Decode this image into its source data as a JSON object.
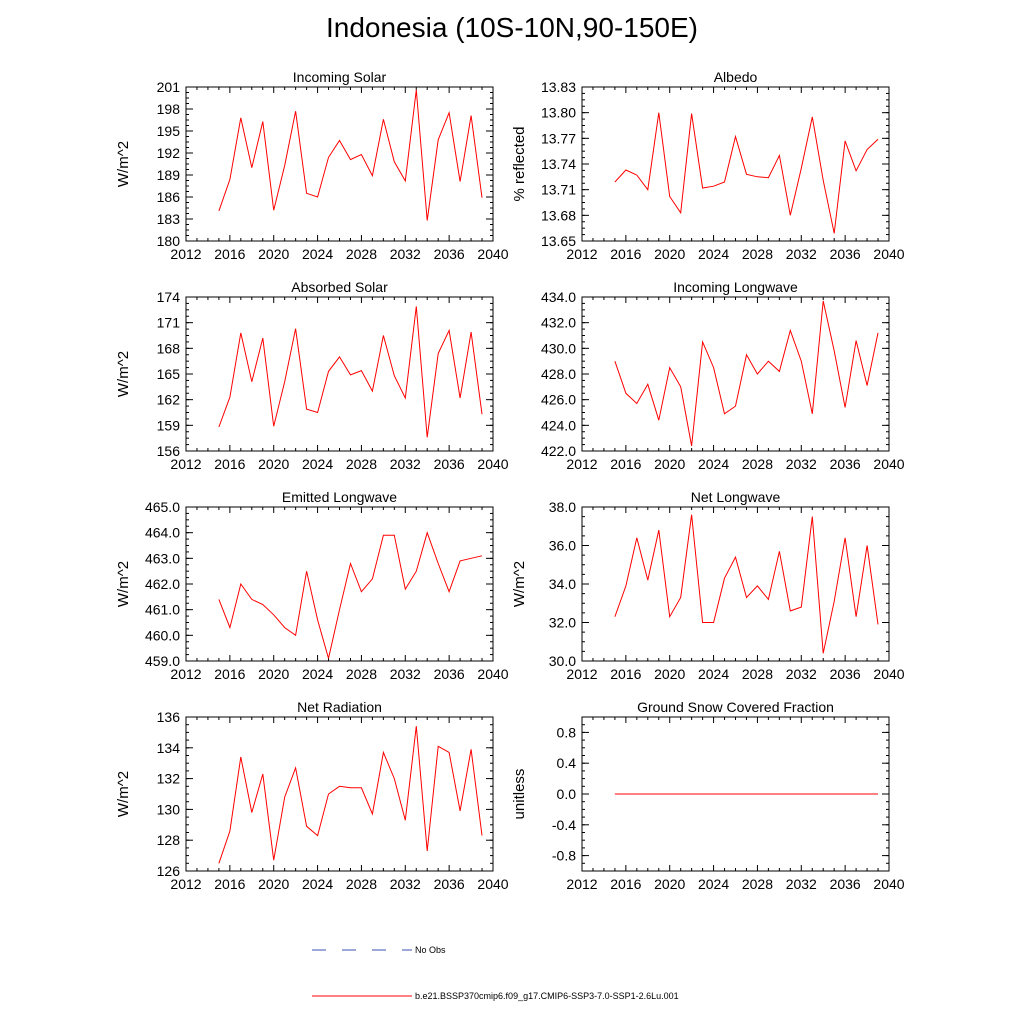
{
  "title": "Indonesia (10S-10N,90-150E)",
  "colors": {
    "model": "#ff0000",
    "obs": "#3b4fb5",
    "axis": "#000000"
  },
  "legend": {
    "obs_label": "No Obs",
    "model_label": "b.e21.BSSP370cmip6.f09_g17.CMIP6-SSP3-7.0-SSP1-2.6Lu.001"
  },
  "chart_data": [
    {
      "type": "line",
      "title": "Incoming Solar",
      "ylabel": "W/m^2",
      "xlim": [
        2012,
        2040
      ],
      "ylim": [
        180,
        201
      ],
      "xticks": [
        "2012",
        "2016",
        "2020",
        "2024",
        "2028",
        "2032",
        "2036",
        "2040"
      ],
      "yticks": [
        "180",
        "183",
        "186",
        "189",
        "192",
        "195",
        "198",
        "201"
      ],
      "series": [
        {
          "x": [
            2015,
            2016,
            2017,
            2018,
            2019,
            2020,
            2021,
            2022,
            2023,
            2024,
            2025,
            2026,
            2027,
            2028,
            2029,
            2030,
            2031,
            2032,
            2033,
            2034,
            2035,
            2036,
            2037,
            2038,
            2039
          ],
          "values": [
            184.1,
            188.4,
            196.8,
            190.0,
            196.3,
            184.2,
            190.3,
            197.7,
            186.5,
            186.0,
            191.4,
            193.7,
            191.1,
            191.8,
            188.9,
            196.6,
            190.8,
            188.2,
            200.6,
            182.8,
            193.8,
            197.5,
            188.1,
            197.1,
            185.9
          ]
        }
      ]
    },
    {
      "type": "line",
      "title": "Albedo",
      "ylabel": "% reflected",
      "xlim": [
        2012,
        2040
      ],
      "ylim": [
        13.65,
        13.83
      ],
      "xticks": [
        "2012",
        "2016",
        "2020",
        "2024",
        "2028",
        "2032",
        "2036",
        "2040"
      ],
      "yticks": [
        "13.65",
        "13.68",
        "13.71",
        "13.74",
        "13.77",
        "13.80",
        "13.83"
      ],
      "series": [
        {
          "x": [
            2015,
            2016,
            2017,
            2018,
            2019,
            2020,
            2021,
            2022,
            2023,
            2024,
            2025,
            2026,
            2027,
            2028,
            2029,
            2030,
            2031,
            2032,
            2033,
            2034,
            2035,
            2036,
            2037,
            2038,
            2039
          ],
          "values": [
            13.719,
            13.733,
            13.727,
            13.71,
            13.8,
            13.702,
            13.683,
            13.799,
            13.712,
            13.714,
            13.719,
            13.772,
            13.728,
            13.725,
            13.724,
            13.75,
            13.68,
            13.735,
            13.795,
            13.721,
            13.659,
            13.767,
            13.732,
            13.757,
            13.769
          ]
        }
      ]
    },
    {
      "type": "line",
      "title": "Absorbed Solar",
      "ylabel": "W/m^2",
      "xlim": [
        2012,
        2040
      ],
      "ylim": [
        156,
        174
      ],
      "xticks": [
        "2012",
        "2016",
        "2020",
        "2024",
        "2028",
        "2032",
        "2036",
        "2040"
      ],
      "yticks": [
        "156",
        "159",
        "162",
        "165",
        "168",
        "171",
        "174"
      ],
      "series": [
        {
          "x": [
            2015,
            2016,
            2017,
            2018,
            2019,
            2020,
            2021,
            2022,
            2023,
            2024,
            2025,
            2026,
            2027,
            2028,
            2029,
            2030,
            2031,
            2032,
            2033,
            2034,
            2035,
            2036,
            2037,
            2038,
            2039
          ],
          "values": [
            158.8,
            162.3,
            169.8,
            164.1,
            169.2,
            158.9,
            164.1,
            170.3,
            160.9,
            160.5,
            165.3,
            167.0,
            164.9,
            165.4,
            163.0,
            169.5,
            164.8,
            162.2,
            172.9,
            157.6,
            167.4,
            170.1,
            162.2,
            169.9,
            160.3
          ]
        }
      ]
    },
    {
      "type": "line",
      "title": "Incoming Longwave",
      "ylabel": "",
      "xlim": [
        2012,
        2040
      ],
      "ylim": [
        422.0,
        434.0
      ],
      "xticks": [
        "2012",
        "2016",
        "2020",
        "2024",
        "2028",
        "2032",
        "2036",
        "2040"
      ],
      "yticks": [
        "422.0",
        "424.0",
        "426.0",
        "428.0",
        "430.0",
        "432.0",
        "434.0"
      ],
      "series": [
        {
          "x": [
            2015,
            2016,
            2017,
            2018,
            2019,
            2020,
            2021,
            2022,
            2023,
            2024,
            2025,
            2026,
            2027,
            2028,
            2029,
            2030,
            2031,
            2032,
            2033,
            2034,
            2035,
            2036,
            2037,
            2038,
            2039
          ],
          "values": [
            429.0,
            426.5,
            425.7,
            427.2,
            424.4,
            428.5,
            427.0,
            422.4,
            430.5,
            428.5,
            424.9,
            425.5,
            429.5,
            428.0,
            429.0,
            428.2,
            431.4,
            429.0,
            424.9,
            433.7,
            429.8,
            425.4,
            430.6,
            427.1,
            431.2
          ]
        }
      ]
    },
    {
      "type": "line",
      "title": "Emitted Longwave",
      "ylabel": "W/m^2",
      "xlim": [
        2012,
        2040
      ],
      "ylim": [
        459.0,
        465.0
      ],
      "xticks": [
        "2012",
        "2016",
        "2020",
        "2024",
        "2028",
        "2032",
        "2036",
        "2040"
      ],
      "yticks": [
        "459.0",
        "460.0",
        "461.0",
        "462.0",
        "463.0",
        "464.0",
        "465.0"
      ],
      "series": [
        {
          "x": [
            2015,
            2016,
            2017,
            2018,
            2019,
            2020,
            2021,
            2022,
            2023,
            2024,
            2025,
            2026,
            2027,
            2028,
            2029,
            2030,
            2031,
            2032,
            2033,
            2034,
            2035,
            2036,
            2037,
            2038,
            2039
          ],
          "values": [
            461.4,
            460.3,
            462.0,
            461.4,
            461.2,
            460.8,
            460.3,
            460.0,
            462.5,
            460.6,
            459.1,
            461.0,
            462.8,
            461.7,
            462.2,
            463.9,
            463.9,
            461.8,
            462.5,
            464.0,
            462.8,
            461.7,
            462.9,
            463.0,
            463.1
          ]
        }
      ]
    },
    {
      "type": "line",
      "title": "Net Longwave",
      "ylabel": "W/m^2",
      "xlim": [
        2012,
        2040
      ],
      "ylim": [
        30.0,
        38.0
      ],
      "xticks": [
        "2012",
        "2016",
        "2020",
        "2024",
        "2028",
        "2032",
        "2036",
        "2040"
      ],
      "yticks": [
        "30.0",
        "32.0",
        "34.0",
        "36.0",
        "38.0"
      ],
      "series": [
        {
          "x": [
            2015,
            2016,
            2017,
            2018,
            2019,
            2020,
            2021,
            2022,
            2023,
            2024,
            2025,
            2026,
            2027,
            2028,
            2029,
            2030,
            2031,
            2032,
            2033,
            2034,
            2035,
            2036,
            2037,
            2038,
            2039
          ],
          "values": [
            32.3,
            33.9,
            36.4,
            34.2,
            36.8,
            32.3,
            33.3,
            37.6,
            32.0,
            32.0,
            34.3,
            35.4,
            33.3,
            33.9,
            33.2,
            35.7,
            32.6,
            32.8,
            37.5,
            30.4,
            33.1,
            36.4,
            32.3,
            36.0,
            31.9
          ]
        }
      ]
    },
    {
      "type": "line",
      "title": "Net Radiation",
      "ylabel": "W/m^2",
      "xlim": [
        2012,
        2040
      ],
      "ylim": [
        126,
        136
      ],
      "xticks": [
        "2012",
        "2016",
        "2020",
        "2024",
        "2028",
        "2032",
        "2036",
        "2040"
      ],
      "yticks": [
        "126",
        "128",
        "130",
        "132",
        "134",
        "136"
      ],
      "series": [
        {
          "x": [
            2015,
            2016,
            2017,
            2018,
            2019,
            2020,
            2021,
            2022,
            2023,
            2024,
            2025,
            2026,
            2027,
            2028,
            2029,
            2030,
            2031,
            2032,
            2033,
            2034,
            2035,
            2036,
            2037,
            2038,
            2039
          ],
          "values": [
            126.5,
            128.6,
            133.4,
            129.8,
            132.3,
            126.7,
            130.8,
            132.7,
            128.9,
            128.3,
            131.0,
            131.5,
            131.4,
            131.4,
            129.7,
            133.7,
            132.0,
            129.3,
            135.4,
            127.3,
            134.1,
            133.7,
            129.9,
            133.9,
            128.3
          ]
        }
      ]
    },
    {
      "type": "line",
      "title": "Ground Snow Covered Fraction",
      "ylabel": "unitless",
      "xlim": [
        2012,
        2040
      ],
      "ylim": [
        -1.0,
        1.0
      ],
      "xticks": [
        "2012",
        "2016",
        "2020",
        "2024",
        "2028",
        "2032",
        "2036",
        "2040"
      ],
      "yticks": [
        "-0.8",
        "-0.4",
        "0.0",
        "0.4",
        "0.8"
      ],
      "series": [
        {
          "x": [
            2015,
            2016,
            2017,
            2018,
            2019,
            2020,
            2021,
            2022,
            2023,
            2024,
            2025,
            2026,
            2027,
            2028,
            2029,
            2030,
            2031,
            2032,
            2033,
            2034,
            2035,
            2036,
            2037,
            2038,
            2039
          ],
          "values": [
            0,
            0,
            0,
            0,
            0,
            0,
            0,
            0,
            0,
            0,
            0,
            0,
            0,
            0,
            0,
            0,
            0,
            0,
            0,
            0,
            0,
            0,
            0,
            0,
            0
          ]
        }
      ]
    }
  ]
}
